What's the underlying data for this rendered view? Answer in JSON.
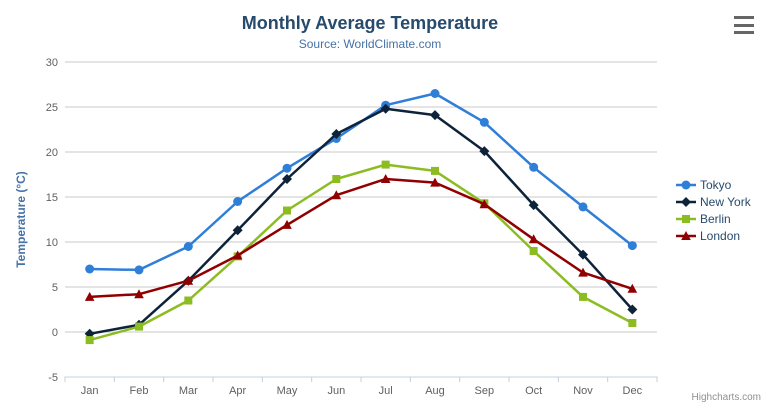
{
  "header": {
    "title": "Monthly Average Temperature",
    "subtitle": "Source: WorldClimate.com"
  },
  "credits": "Highcharts.com",
  "palette": {
    "background": "#ffffff",
    "grid": "#c8c8c8",
    "axis_line": "#c0d0e0",
    "tick": "#c0d0e0",
    "axis_label": "#606060",
    "title": "#274b6d",
    "subtitle": "#4572a7",
    "yaxis_title": "#4572a7",
    "legend_text": "#274b6d",
    "credits_text": "#909090",
    "menu_icon": "#666666"
  },
  "chart_data": {
    "type": "line",
    "title": "Monthly Average Temperature",
    "subtitle": "Source: WorldClimate.com",
    "xlabel": "",
    "ylabel": "Temperature (°C)",
    "ylim": [
      -5,
      30
    ],
    "ytick_step": 5,
    "grid": true,
    "legend_position": "right",
    "categories": [
      "Jan",
      "Feb",
      "Mar",
      "Apr",
      "May",
      "Jun",
      "Jul",
      "Aug",
      "Sep",
      "Oct",
      "Nov",
      "Dec"
    ],
    "series": [
      {
        "name": "Tokyo",
        "color": "#2f7ed8",
        "marker": "circle",
        "values": [
          7.0,
          6.9,
          9.5,
          14.5,
          18.2,
          21.5,
          25.2,
          26.5,
          23.3,
          18.3,
          13.9,
          9.6
        ]
      },
      {
        "name": "New York",
        "color": "#0d233a",
        "marker": "diamond",
        "values": [
          -0.2,
          0.8,
          5.7,
          11.3,
          17.0,
          22.0,
          24.8,
          24.1,
          20.1,
          14.1,
          8.6,
          2.5
        ]
      },
      {
        "name": "Berlin",
        "color": "#8bbc21",
        "marker": "square",
        "values": [
          -0.9,
          0.6,
          3.5,
          8.4,
          13.5,
          17.0,
          18.6,
          17.9,
          14.3,
          9.0,
          3.9,
          1.0
        ]
      },
      {
        "name": "London",
        "color": "#910000",
        "marker": "triangle",
        "values": [
          3.9,
          4.2,
          5.7,
          8.5,
          11.9,
          15.2,
          17.0,
          16.6,
          14.2,
          10.3,
          6.6,
          4.8
        ]
      }
    ]
  }
}
